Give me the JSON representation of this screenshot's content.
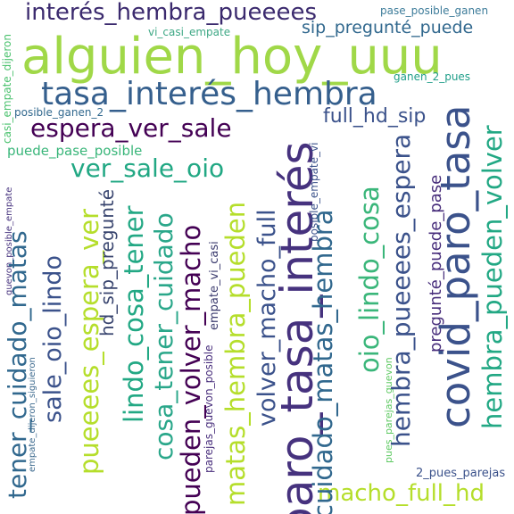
{
  "words": [
    {
      "text": "alguien_hoy_uuu",
      "color": "#a0d848",
      "rotation": 0
    },
    {
      "text": "interés_hembra_pueeees",
      "color": "#3b2a6e",
      "rotation": 0
    },
    {
      "text": "tasa_interés_hembra",
      "color": "#355f8d",
      "rotation": 0
    },
    {
      "text": "pase_posible_ganen",
      "color": "#3d7c9a",
      "rotation": 0
    },
    {
      "text": "vi_casi_empate",
      "color": "#3ea885",
      "rotation": 0
    },
    {
      "text": "sip_pregunté_puede",
      "color": "#31688e",
      "rotation": 0
    },
    {
      "text": "espera_ver_sale",
      "color": "#440154",
      "rotation": 0
    },
    {
      "text": "full_hd_sip",
      "color": "#3b528b",
      "rotation": 0
    },
    {
      "text": "ver_sale_oio",
      "color": "#22a884",
      "rotation": 0
    },
    {
      "text": "puede_pase_posible",
      "color": "#3ab67a",
      "rotation": 0
    },
    {
      "text": "posible_ganen_2",
      "color": "#31688e",
      "rotation": 0
    },
    {
      "text": "ganen_2_pues",
      "color": "#1f9e89",
      "rotation": 0
    },
    {
      "text": "macho_full_hd",
      "color": "#b5de2b",
      "rotation": 0
    },
    {
      "text": "2_pues_parejas",
      "color": "#3b528b",
      "rotation": 0
    },
    {
      "text": "casi_empate_dijeron",
      "color": "#4ac16d",
      "rotation": -90
    },
    {
      "text": "guevon_posible_empate",
      "color": "#46327e",
      "rotation": -90
    },
    {
      "text": "empate_dijeron_siguieron",
      "color": "#3e6b8f",
      "rotation": -90
    },
    {
      "text": "tener_cuidado_matas",
      "color": "#31688e",
      "rotation": -90
    },
    {
      "text": "sale_oio_lindo",
      "color": "#3b528b",
      "rotation": -90
    },
    {
      "text": "pueeees_espera_ver",
      "color": "#b5de2b",
      "rotation": -90
    },
    {
      "text": "hd_sip_pregunté",
      "color": "#39456f",
      "rotation": -90
    },
    {
      "text": "lindo_cosa_tener",
      "color": "#22a884",
      "rotation": -90
    },
    {
      "text": "cosa_tener_cuidado",
      "color": "#2aa78a",
      "rotation": -90
    },
    {
      "text": "empate_vi_casi",
      "color": "#3b3b6e",
      "rotation": -90
    },
    {
      "text": "parejas_guevon_posible",
      "color": "#472d7b",
      "rotation": -90
    },
    {
      "text": "pueden_volver_macho",
      "color": "#440154",
      "rotation": -90
    },
    {
      "text": "matas_hembra_pueden",
      "color": "#b5de2b",
      "rotation": -90
    },
    {
      "text": "volver_macho_full",
      "color": "#3b528b",
      "rotation": -90
    },
    {
      "text": "paro_tasa_interés",
      "color": "#46327e",
      "rotation": -90
    },
    {
      "text": "posible_empate_vi",
      "color": "#3b528b",
      "rotation": -90
    },
    {
      "text": "cuidado_matas_hembra",
      "color": "#31688e",
      "rotation": -90
    },
    {
      "text": "oio_lindo_cosa",
      "color": "#3ab67a",
      "rotation": -90
    },
    {
      "text": "pues_parejas_guevon",
      "color": "#5ec962",
      "rotation": -90
    },
    {
      "text": "hembra_pueeees_espera",
      "color": "#3b528b",
      "rotation": -90
    },
    {
      "text": "pregunté_puede_pase",
      "color": "#472d7b",
      "rotation": -90
    },
    {
      "text": "covid_paro_tasa",
      "color": "#3b528b",
      "rotation": -90
    },
    {
      "text": "hembra_pueden_volver",
      "color": "#22a884",
      "rotation": -90
    }
  ]
}
